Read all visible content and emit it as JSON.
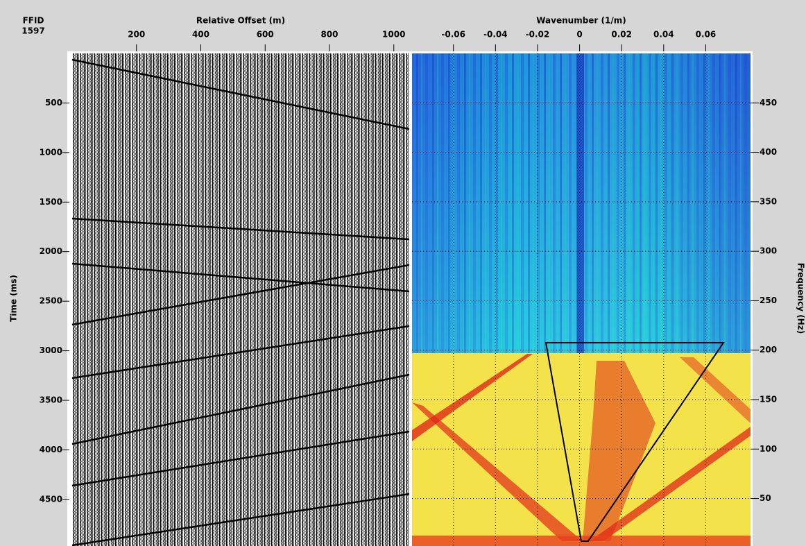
{
  "header": {
    "label": "FFID",
    "value": "1597"
  },
  "offset_panel": {
    "x_label": "Relative Offset (m)",
    "xlim": [
      0,
      1048
    ],
    "xticks": [
      200,
      400,
      600,
      800,
      1000
    ],
    "y_label": "Time (ms)",
    "ylim": [
      0,
      4970
    ],
    "yticks": [
      500,
      1000,
      1500,
      2000,
      2500,
      3000,
      3500,
      4000,
      4500
    ]
  },
  "fk_panel": {
    "x_label": "Wavenumber (1/m)",
    "xlim": [
      -0.0797,
      0.0813
    ],
    "xticks": [
      -0.06,
      -0.04,
      -0.02,
      0,
      0.02,
      0.04,
      0.06
    ],
    "y_label": "Frequency (Hz)",
    "ylim": [
      500,
      2
    ],
    "yticks": [
      450,
      400,
      350,
      300,
      250,
      200,
      150,
      100,
      50
    ]
  }
}
